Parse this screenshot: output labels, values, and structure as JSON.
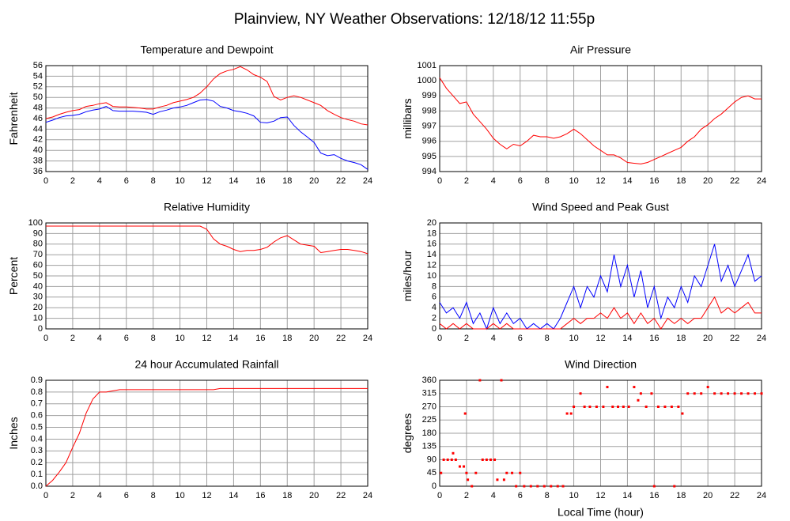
{
  "title": "Plainview, NY Weather Observations: 12/18/12 11:55p",
  "chart_data": [
    {
      "type": "line",
      "title": "Temperature and Dewpoint",
      "ylabel": "Fahrenheit",
      "grid": true,
      "x": [
        0,
        0.5,
        1,
        1.5,
        2,
        2.5,
        3,
        3.5,
        4,
        4.5,
        5,
        5.5,
        6,
        6.5,
        7,
        7.5,
        8,
        8.5,
        9,
        9.5,
        10,
        10.5,
        11,
        11.5,
        12,
        12.5,
        13,
        13.5,
        14,
        14.5,
        15,
        15.5,
        16,
        16.5,
        17,
        17.5,
        18,
        18.5,
        19,
        19.5,
        20,
        20.5,
        21,
        21.5,
        22,
        22.5,
        23,
        23.5,
        24
      ],
      "series": [
        {
          "color": "#ff0000",
          "values": [
            46,
            46.3,
            46.8,
            47.2,
            47.5,
            47.7,
            48.3,
            48.5,
            48.8,
            49,
            48.3,
            48.2,
            48.2,
            48.1,
            48,
            47.8,
            47.8,
            48.2,
            48.5,
            49,
            49.3,
            49.6,
            50,
            50.8,
            52,
            53.5,
            54.5,
            55,
            55.3,
            55.8,
            55.2,
            54.3,
            53.8,
            53,
            50.2,
            49.5,
            50,
            50.3,
            50,
            49.5,
            49,
            48.5,
            47.5,
            46.8,
            46.2,
            45.8,
            45.5,
            45,
            44.8
          ]
        },
        {
          "color": "#0000ff",
          "values": [
            45.3,
            45.7,
            46.2,
            46.5,
            46.6,
            46.8,
            47.3,
            47.6,
            47.8,
            48.3,
            47.5,
            47.4,
            47.4,
            47.4,
            47.3,
            47.2,
            46.8,
            47.3,
            47.6,
            48,
            48.2,
            48.5,
            49,
            49.5,
            49.6,
            49.3,
            48.3,
            48,
            47.5,
            47.3,
            47,
            46.5,
            45.3,
            45.2,
            45.5,
            46.2,
            46.3,
            44.7,
            43.5,
            42.5,
            41.5,
            39.5,
            39,
            39.2,
            38.5,
            38,
            37.7,
            37.3,
            36.4
          ]
        }
      ],
      "xlim": [
        0,
        24
      ],
      "xticks": [
        0,
        2,
        4,
        6,
        8,
        10,
        12,
        14,
        16,
        18,
        20,
        22,
        24
      ],
      "ylim": [
        36,
        56
      ],
      "yticks": [
        36,
        38,
        40,
        42,
        44,
        46,
        48,
        50,
        52,
        54,
        56
      ]
    },
    {
      "type": "line",
      "title": "Air Pressure",
      "ylabel": "millibars",
      "grid": true,
      "x": [
        0,
        0.5,
        1,
        1.5,
        2,
        2.5,
        3,
        3.5,
        4,
        4.5,
        5,
        5.5,
        6,
        6.5,
        7,
        7.5,
        8,
        8.5,
        9,
        9.5,
        10,
        10.5,
        11,
        11.5,
        12,
        12.5,
        13,
        13.5,
        14,
        14.5,
        15,
        15.5,
        16,
        16.5,
        17,
        17.5,
        18,
        18.5,
        19,
        19.5,
        20,
        20.5,
        21,
        21.5,
        22,
        22.5,
        23,
        23.5,
        24
      ],
      "series": [
        {
          "color": "#ff0000",
          "values": [
            1000.2,
            999.5,
            999,
            998.5,
            998.6,
            997.8,
            997.3,
            996.8,
            996.2,
            995.8,
            995.5,
            995.8,
            995.7,
            996,
            996.4,
            996.3,
            996.3,
            996.2,
            996.3,
            996.5,
            996.8,
            996.5,
            996.1,
            995.7,
            995.4,
            995.1,
            995.1,
            994.9,
            994.6,
            994.55,
            994.5,
            994.6,
            994.8,
            995,
            995.2,
            995.4,
            995.6,
            996,
            996.3,
            996.8,
            997.1,
            997.5,
            997.8,
            998.2,
            998.6,
            998.9,
            999,
            998.8,
            998.8
          ]
        }
      ],
      "xlim": [
        0,
        24
      ],
      "xticks": [
        0,
        2,
        4,
        6,
        8,
        10,
        12,
        14,
        16,
        18,
        20,
        22,
        24
      ],
      "ylim": [
        994,
        1001
      ],
      "yticks": [
        994,
        995,
        996,
        997,
        998,
        999,
        1000,
        1001
      ]
    },
    {
      "type": "line",
      "title": "Relative Humidity",
      "ylabel": "Percent",
      "grid": true,
      "x": [
        0,
        0.5,
        1,
        1.5,
        2,
        2.5,
        3,
        3.5,
        4,
        4.5,
        5,
        5.5,
        6,
        6.5,
        7,
        7.5,
        8,
        8.5,
        9,
        9.5,
        10,
        10.5,
        11,
        11.5,
        12,
        12.5,
        13,
        13.5,
        14,
        14.5,
        15,
        15.5,
        16,
        16.5,
        17,
        17.5,
        18,
        18.5,
        19,
        19.5,
        20,
        20.5,
        21,
        21.5,
        22,
        22.5,
        23,
        23.5,
        24
      ],
      "series": [
        {
          "color": "#ff0000",
          "values": [
            97,
            97,
            97,
            97,
            97,
            97,
            97,
            97,
            97,
            97,
            97,
            97,
            97,
            97,
            97,
            97,
            97,
            97,
            97,
            97,
            97,
            97,
            97,
            97,
            94,
            85,
            80,
            78,
            75,
            73,
            74,
            74,
            75,
            77,
            82,
            86,
            88,
            84,
            80,
            79,
            78,
            72,
            73,
            74,
            75,
            75,
            74,
            73,
            71
          ]
        }
      ],
      "xlim": [
        0,
        24
      ],
      "xticks": [
        0,
        2,
        4,
        6,
        8,
        10,
        12,
        14,
        16,
        18,
        20,
        22,
        24
      ],
      "ylim": [
        0,
        100
      ],
      "yticks": [
        0,
        10,
        20,
        30,
        40,
        50,
        60,
        70,
        80,
        90,
        100
      ]
    },
    {
      "type": "line",
      "title": "Wind Speed and Peak Gust",
      "ylabel": "miles/hour",
      "grid": true,
      "x": [
        0,
        0.5,
        1,
        1.5,
        2,
        2.5,
        3,
        3.5,
        4,
        4.5,
        5,
        5.5,
        6,
        6.5,
        7,
        7.5,
        8,
        8.5,
        9,
        9.5,
        10,
        10.5,
        11,
        11.5,
        12,
        12.5,
        13,
        13.5,
        14,
        14.5,
        15,
        15.5,
        16,
        16.5,
        17,
        17.5,
        18,
        18.5,
        19,
        19.5,
        20,
        20.5,
        21,
        21.5,
        22,
        22.5,
        23,
        23.5,
        24
      ],
      "series": [
        {
          "color": "#0000ff",
          "values": [
            5,
            3,
            4,
            2,
            5,
            1,
            3,
            0,
            4,
            1,
            3,
            1,
            2,
            0,
            1,
            0,
            1,
            0,
            2,
            5,
            8,
            4,
            8,
            6,
            10,
            7,
            14,
            8,
            12,
            6,
            11,
            4,
            8,
            2,
            6,
            4,
            8,
            5,
            10,
            8,
            12,
            16,
            9,
            12,
            8,
            11,
            14,
            9,
            10
          ]
        },
        {
          "color": "#ff0000",
          "values": [
            1,
            0,
            1,
            0,
            1,
            0,
            0,
            0,
            1,
            0,
            1,
            0,
            0,
            0,
            0,
            0,
            0,
            0,
            0,
            1,
            2,
            1,
            2,
            2,
            3,
            2,
            4,
            2,
            3,
            1,
            3,
            1,
            2,
            0,
            2,
            1,
            2,
            1,
            2,
            2,
            4,
            6,
            3,
            4,
            3,
            4,
            5,
            3,
            3
          ]
        }
      ],
      "xlim": [
        0,
        24
      ],
      "xticks": [
        0,
        2,
        4,
        6,
        8,
        10,
        12,
        14,
        16,
        18,
        20,
        22,
        24
      ],
      "ylim": [
        0,
        20
      ],
      "yticks": [
        0,
        2,
        4,
        6,
        8,
        10,
        12,
        14,
        16,
        18,
        20
      ]
    },
    {
      "type": "line",
      "title": "24 hour Accumulated Rainfall",
      "ylabel": "Inches",
      "grid": true,
      "x": [
        0,
        0.5,
        1,
        1.5,
        2,
        2.5,
        3,
        3.5,
        4,
        4.5,
        5,
        5.5,
        6,
        6.5,
        7,
        7.5,
        8,
        8.5,
        9,
        9.5,
        10,
        10.5,
        11,
        11.5,
        12,
        12.5,
        13,
        13.5,
        14,
        14.5,
        15,
        15.5,
        16,
        16.5,
        17,
        17.5,
        18,
        18.5,
        19,
        19.5,
        20,
        20.5,
        21,
        21.5,
        22,
        22.5,
        23,
        23.5,
        24
      ],
      "series": [
        {
          "color": "#ff0000",
          "values": [
            0,
            0.05,
            0.12,
            0.2,
            0.33,
            0.45,
            0.62,
            0.74,
            0.8,
            0.8,
            0.81,
            0.82,
            0.82,
            0.82,
            0.82,
            0.82,
            0.82,
            0.82,
            0.82,
            0.82,
            0.82,
            0.82,
            0.82,
            0.82,
            0.82,
            0.82,
            0.83,
            0.83,
            0.83,
            0.83,
            0.83,
            0.83,
            0.83,
            0.83,
            0.83,
            0.83,
            0.83,
            0.83,
            0.83,
            0.83,
            0.83,
            0.83,
            0.83,
            0.83,
            0.83,
            0.83,
            0.83,
            0.83,
            0.83
          ]
        }
      ],
      "xlim": [
        0,
        24
      ],
      "xticks": [
        0,
        2,
        4,
        6,
        8,
        10,
        12,
        14,
        16,
        18,
        20,
        22,
        24
      ],
      "ylim": [
        0,
        0.9
      ],
      "yticks": [
        {
          "value": 0,
          "label": "0.0"
        },
        0.1,
        0.2,
        0.3,
        0.4,
        0.5,
        0.6,
        0.7,
        0.8,
        0.9
      ]
    },
    {
      "type": "scatter",
      "title": "Wind Direction",
      "ylabel": "degrees",
      "xlabel": "Local Time (hour)",
      "grid": true,
      "x": [
        0.1,
        0.3,
        0.6,
        0.9,
        1.0,
        1.2,
        1.5,
        1.8,
        1.9,
        2.0,
        2.1,
        2.4,
        2.7,
        3.0,
        3.2,
        3.5,
        3.8,
        4.1,
        4.3,
        4.6,
        4.8,
        5.0,
        5.4,
        5.7,
        6.0,
        6.3,
        6.8,
        7.3,
        7.8,
        8.3,
        8.8,
        9.2,
        9.5,
        9.8,
        10.0,
        10.5,
        10.8,
        11.2,
        11.7,
        12.2,
        12.5,
        12.9,
        13.3,
        13.7,
        14.1,
        14.5,
        14.8,
        15.0,
        15.4,
        15.8,
        16.0,
        16.3,
        16.8,
        17.3,
        17.5,
        17.8,
        18.1,
        18.5,
        19.0,
        19.5,
        20.0,
        20.5,
        21.0,
        21.5,
        22.0,
        22.5,
        23.0,
        23.5,
        24.0
      ],
      "series": [
        {
          "color": "#ff0000",
          "values": [
            45,
            90,
            90,
            90,
            112,
            90,
            67,
            67,
            247,
            45,
            22,
            0,
            45,
            360,
            90,
            90,
            90,
            90,
            22,
            360,
            22,
            45,
            45,
            0,
            45,
            0,
            0,
            0,
            0,
            0,
            0,
            0,
            247,
            247,
            270,
            315,
            270,
            270,
            270,
            270,
            337,
            270,
            270,
            270,
            270,
            337,
            292,
            315,
            270,
            315,
            0,
            270,
            270,
            270,
            0,
            270,
            247,
            315,
            315,
            315,
            337,
            315,
            315,
            315,
            315,
            315,
            315,
            315,
            315
          ]
        }
      ],
      "xlim": [
        0,
        24
      ],
      "xticks": [
        0,
        2,
        4,
        6,
        8,
        10,
        12,
        14,
        16,
        18,
        20,
        22,
        24
      ],
      "ylim": [
        0,
        360
      ],
      "yticks": [
        0,
        45,
        90,
        135,
        180,
        225,
        270,
        315,
        360
      ]
    }
  ]
}
